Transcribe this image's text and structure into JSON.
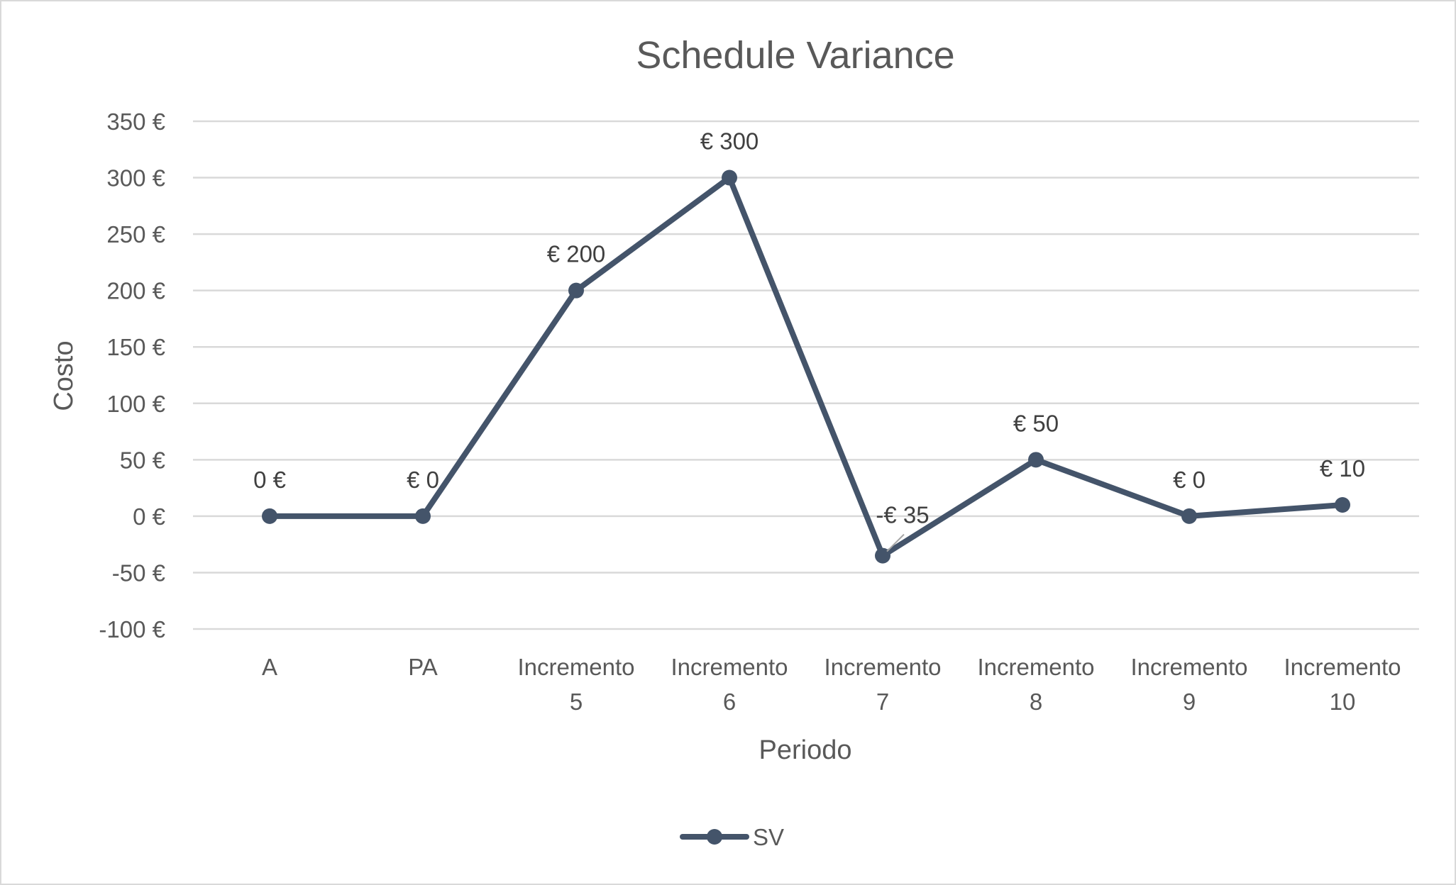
{
  "chart_data": {
    "type": "line",
    "title": "Schedule Variance",
    "xlabel": "Periodo",
    "ylabel": "Costo",
    "categories": [
      [
        "A"
      ],
      [
        "PA"
      ],
      [
        "Incremento",
        "5"
      ],
      [
        "Incremento",
        "6"
      ],
      [
        "Incremento",
        "7"
      ],
      [
        "Incremento",
        "8"
      ],
      [
        "Incremento",
        "9"
      ],
      [
        "Incremento",
        "10"
      ]
    ],
    "series": [
      {
        "name": "SV",
        "color": "#44546a",
        "values": [
          0,
          0,
          200,
          300,
          -35,
          50,
          0,
          10
        ],
        "data_labels": [
          "0 €",
          "€ 0",
          "€ 200",
          "€ 300",
          "-€ 35",
          "€ 50",
          "€ 0",
          "€ 10"
        ]
      }
    ],
    "ylim": [
      -100,
      350
    ],
    "yticks": [
      350,
      300,
      250,
      200,
      150,
      100,
      50,
      0,
      -50,
      -100
    ],
    "ytick_labels": [
      "350 €",
      "300 €",
      "250 €",
      "200 €",
      "150 €",
      "100 €",
      "50 €",
      "0 €",
      "-50 €",
      "-100 €"
    ],
    "negative_tick_color": "#ff0000",
    "grid": true,
    "legend_position": "bottom"
  }
}
